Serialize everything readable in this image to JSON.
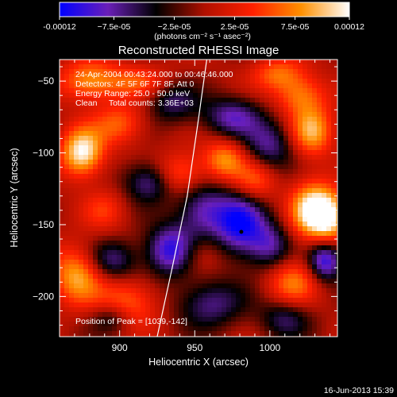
{
  "chart_data": {
    "type": "heatmap",
    "title": "Reconstructed RHESSI Image",
    "xlabel": "Heliocentric X (arcsec)",
    "ylabel": "Heliocentric Y (arcsec)",
    "xlim": [
      860,
      1045
    ],
    "ylim": [
      -228,
      -35
    ],
    "x_ticks": [
      900,
      950,
      1000
    ],
    "y_ticks": [
      -50,
      -100,
      -150,
      -200
    ],
    "colorbar": {
      "min": -0.00012,
      "max": 0.00012,
      "tick_values": [
        -0.00012,
        -7.5e-05,
        -2.5e-05,
        2.5e-05,
        7.5e-05,
        0.00012
      ],
      "tick_labels": [
        "-0.00012",
        "−7.5e-05",
        "−2.5e-05",
        "2.5e-05",
        "7.5e-05",
        "0.00012"
      ],
      "unit_label": "(photons cm⁻² s⁻¹ asec⁻²)",
      "colors": [
        "#0000ff",
        "#6a1fb8",
        "#000000",
        "#b01000",
        "#ff2000",
        "#ff9000",
        "#ffffff"
      ]
    },
    "annotations": [
      "24-Apr-2004 00:43:24.000 to 00:46:46.000",
      "Detectors: 4F 5F 6F 7F 8F, Att 0",
      "Energy Range: 25.0 - 50.0 keV",
      "Clean     Total counts: 3.36E+03"
    ],
    "peak_label": "Position of Peak = [1039,-142]",
    "marker": {
      "x": 981,
      "y": -155
    },
    "limb_curve": [
      [
        925,
        -228
      ],
      [
        935,
        -180
      ],
      [
        945,
        -130
      ],
      [
        952,
        -80
      ],
      [
        958,
        -35
      ]
    ],
    "blobs": [
      {
        "x": 875,
        "y": -100,
        "v": 0.00012,
        "sx": 10,
        "sy": 12
      },
      {
        "x": 880,
        "y": -50,
        "v": 8e-05,
        "sx": 14,
        "sy": 10
      },
      {
        "x": 900,
        "y": -80,
        "v": 6e-05,
        "sx": 12,
        "sy": 10
      },
      {
        "x": 912,
        "y": -50,
        "v": 5e-05,
        "sx": 14,
        "sy": 8
      },
      {
        "x": 1028,
        "y": -140,
        "v": 0.00012,
        "sx": 10,
        "sy": 14
      },
      {
        "x": 1040,
        "y": -145,
        "v": 0.0001,
        "sx": 8,
        "sy": 12
      },
      {
        "x": 1028,
        "y": -85,
        "v": 9e-05,
        "sx": 10,
        "sy": 12
      },
      {
        "x": 1020,
        "y": -60,
        "v": 7e-05,
        "sx": 12,
        "sy": 10
      },
      {
        "x": 970,
        "y": -105,
        "v": 8e-05,
        "sx": 10,
        "sy": 10
      },
      {
        "x": 940,
        "y": -115,
        "v": 7e-05,
        "sx": 12,
        "sy": 10
      },
      {
        "x": 872,
        "y": -185,
        "v": 9e-05,
        "sx": 12,
        "sy": 14
      },
      {
        "x": 905,
        "y": -205,
        "v": 7e-05,
        "sx": 14,
        "sy": 12
      },
      {
        "x": 950,
        "y": -170,
        "v": 5e-05,
        "sx": 12,
        "sy": 10
      },
      {
        "x": 1015,
        "y": -190,
        "v": 7e-05,
        "sx": 12,
        "sy": 12
      },
      {
        "x": 990,
        "y": -120,
        "v": 6e-05,
        "sx": 10,
        "sy": 10
      },
      {
        "x": 890,
        "y": -140,
        "v": 4e-05,
        "sx": 10,
        "sy": 10
      },
      {
        "x": 1005,
        "y": -45,
        "v": 6e-05,
        "sx": 12,
        "sy": 8
      },
      {
        "x": 935,
        "y": -168,
        "v": -0.00012,
        "sx": 12,
        "sy": 12
      },
      {
        "x": 980,
        "y": -150,
        "v": -0.00011,
        "sx": 12,
        "sy": 16
      },
      {
        "x": 1037,
        "y": -175,
        "v": -0.00011,
        "sx": 8,
        "sy": 10
      },
      {
        "x": 955,
        "y": -140,
        "v": -8e-05,
        "sx": 12,
        "sy": 14
      },
      {
        "x": 920,
        "y": -120,
        "v": -8e-05,
        "sx": 12,
        "sy": 10
      },
      {
        "x": 975,
        "y": -75,
        "v": -8e-05,
        "sx": 14,
        "sy": 10
      },
      {
        "x": 1000,
        "y": -95,
        "v": -7e-05,
        "sx": 12,
        "sy": 12
      },
      {
        "x": 895,
        "y": -175,
        "v": -7e-05,
        "sx": 12,
        "sy": 10
      },
      {
        "x": 960,
        "y": -205,
        "v": -7e-05,
        "sx": 16,
        "sy": 12
      },
      {
        "x": 1000,
        "y": -165,
        "v": -7e-05,
        "sx": 10,
        "sy": 12
      },
      {
        "x": 935,
        "y": -65,
        "v": -6e-05,
        "sx": 12,
        "sy": 10
      },
      {
        "x": 1010,
        "y": -215,
        "v": -6e-05,
        "sx": 12,
        "sy": 10
      },
      {
        "x": 895,
        "y": -215,
        "v": -6e-05,
        "sx": 10,
        "sy": 8
      }
    ]
  },
  "footer": {
    "timestamp": "16-Jun-2013 15:39"
  }
}
